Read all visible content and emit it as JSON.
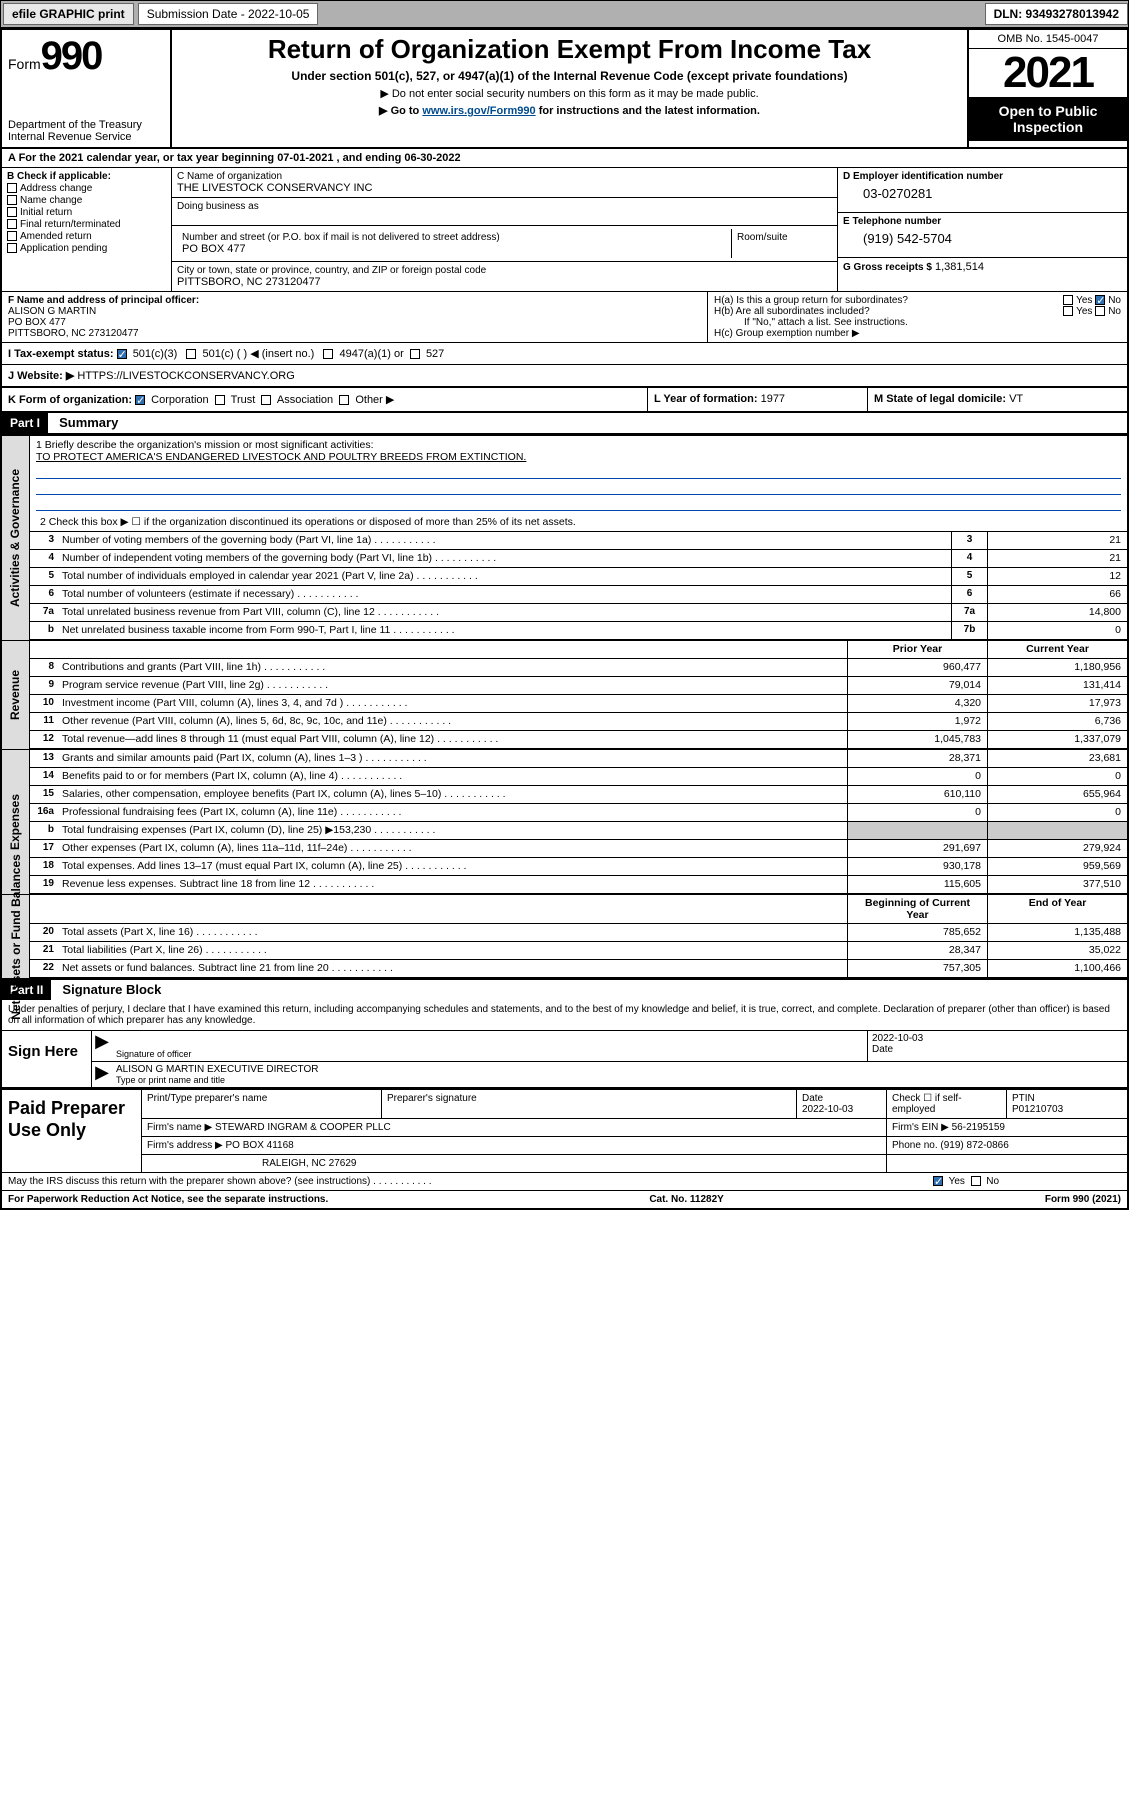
{
  "topbar": {
    "efile": "efile GRAPHIC print",
    "submission_label": "Submission Date - 2022-10-05",
    "dln": "DLN: 93493278013942"
  },
  "header": {
    "form_label": "Form",
    "form_num": "990",
    "dept": "Department of the Treasury",
    "irs": "Internal Revenue Service",
    "title": "Return of Organization Exempt From Income Tax",
    "sub1": "Under section 501(c), 527, or 4947(a)(1) of the Internal Revenue Code (except private foundations)",
    "sub2": "▶ Do not enter social security numbers on this form as it may be made public.",
    "sub3_pre": "▶ Go to ",
    "sub3_link": "www.irs.gov/Form990",
    "sub3_post": " for instructions and the latest information.",
    "omb": "OMB No. 1545-0047",
    "year": "2021",
    "open": "Open to Public Inspection"
  },
  "lineA": "A For the 2021 calendar year, or tax year beginning 07-01-2021    , and ending 06-30-2022",
  "colB": {
    "title": "B Check if applicable:",
    "opts": [
      "Address change",
      "Name change",
      "Initial return",
      "Final return/terminated",
      "Amended return",
      "Application pending"
    ]
  },
  "colC": {
    "name_lbl": "C Name of organization",
    "name": "THE LIVESTOCK CONSERVANCY INC",
    "dba_lbl": "Doing business as",
    "addr_lbl": "Number and street (or P.O. box if mail is not delivered to street address)",
    "room_lbl": "Room/suite",
    "addr": "PO BOX 477",
    "city_lbl": "City or town, state or province, country, and ZIP or foreign postal code",
    "city": "PITTSBORO, NC  273120477"
  },
  "colD": {
    "ein_lbl": "D Employer identification number",
    "ein": "03-0270281",
    "tel_lbl": "E Telephone number",
    "tel": "(919) 542-5704",
    "gross_lbl": "G Gross receipts $",
    "gross": "1,381,514"
  },
  "rowF": {
    "lbl": "F Name and address of principal officer:",
    "name": "ALISON G MARTIN",
    "addr1": "PO BOX 477",
    "addr2": "PITTSBORO, NC  273120477"
  },
  "rowH": {
    "a": "H(a)  Is this a group return for subordinates?",
    "b": "H(b)  Are all subordinates included?",
    "note": "If \"No,\" attach a list. See instructions.",
    "c": "H(c)  Group exemption number ▶",
    "yes": "Yes",
    "no": "No"
  },
  "rowI": {
    "lbl": "I    Tax-exempt status:",
    "o1": "501(c)(3)",
    "o2": "501(c) (  ) ◀ (insert no.)",
    "o3": "4947(a)(1) or",
    "o4": "527"
  },
  "rowJ": {
    "lbl": "J   Website: ▶",
    "val": "HTTPS://LIVESTOCKCONSERVANCY.ORG"
  },
  "rowK": {
    "k": "K Form of organization:",
    "opts": [
      "Corporation",
      "Trust",
      "Association",
      "Other ▶"
    ],
    "l_lbl": "L Year of formation:",
    "l_val": "1977",
    "m_lbl": "M State of legal domicile:",
    "m_val": "VT"
  },
  "part1": {
    "hdr": "Part I",
    "title": "Summary",
    "mission_lbl": "1   Briefly describe the organization's mission or most significant activities:",
    "mission": "TO PROTECT AMERICA'S ENDANGERED LIVESTOCK AND POULTRY BREEDS FROM EXTINCTION.",
    "line2": "2   Check this box ▶ ☐  if the organization discontinued its operations or disposed of more than 25% of its net assets."
  },
  "sections": [
    {
      "label": "Activities & Governance",
      "rows": [
        {
          "n": "3",
          "t": "Number of voting members of the governing body (Part VI, line 1a)",
          "box": "3",
          "v2": "21"
        },
        {
          "n": "4",
          "t": "Number of independent voting members of the governing body (Part VI, line 1b)",
          "box": "4",
          "v2": "21"
        },
        {
          "n": "5",
          "t": "Total number of individuals employed in calendar year 2021 (Part V, line 2a)",
          "box": "5",
          "v2": "12"
        },
        {
          "n": "6",
          "t": "Total number of volunteers (estimate if necessary)",
          "box": "6",
          "v2": "66"
        },
        {
          "n": "7a",
          "t": "Total unrelated business revenue from Part VIII, column (C), line 12",
          "box": "7a",
          "v2": "14,800"
        },
        {
          "n": "b",
          "t": "Net unrelated business taxable income from Form 990-T, Part I, line 11",
          "box": "7b",
          "v2": "0"
        }
      ]
    }
  ],
  "col_hdr": {
    "prior": "Prior Year",
    "current": "Current Year"
  },
  "revenue": {
    "label": "Revenue",
    "rows": [
      {
        "n": "8",
        "t": "Contributions and grants (Part VIII, line 1h)",
        "v1": "960,477",
        "v2": "1,180,956"
      },
      {
        "n": "9",
        "t": "Program service revenue (Part VIII, line 2g)",
        "v1": "79,014",
        "v2": "131,414"
      },
      {
        "n": "10",
        "t": "Investment income (Part VIII, column (A), lines 3, 4, and 7d )",
        "v1": "4,320",
        "v2": "17,973"
      },
      {
        "n": "11",
        "t": "Other revenue (Part VIII, column (A), lines 5, 6d, 8c, 9c, 10c, and 11e)",
        "v1": "1,972",
        "v2": "6,736"
      },
      {
        "n": "12",
        "t": "Total revenue—add lines 8 through 11 (must equal Part VIII, column (A), line 12)",
        "v1": "1,045,783",
        "v2": "1,337,079"
      }
    ]
  },
  "expenses": {
    "label": "Expenses",
    "rows": [
      {
        "n": "13",
        "t": "Grants and similar amounts paid (Part IX, column (A), lines 1–3 )",
        "v1": "28,371",
        "v2": "23,681"
      },
      {
        "n": "14",
        "t": "Benefits paid to or for members (Part IX, column (A), line 4)",
        "v1": "0",
        "v2": "0"
      },
      {
        "n": "15",
        "t": "Salaries, other compensation, employee benefits (Part IX, column (A), lines 5–10)",
        "v1": "610,110",
        "v2": "655,964"
      },
      {
        "n": "16a",
        "t": "Professional fundraising fees (Part IX, column (A), line 11e)",
        "v1": "0",
        "v2": "0"
      },
      {
        "n": "b",
        "t": "Total fundraising expenses (Part IX, column (D), line 25) ▶153,230",
        "shade": true
      },
      {
        "n": "17",
        "t": "Other expenses (Part IX, column (A), lines 11a–11d, 11f–24e)",
        "v1": "291,697",
        "v2": "279,924"
      },
      {
        "n": "18",
        "t": "Total expenses. Add lines 13–17 (must equal Part IX, column (A), line 25)",
        "v1": "930,178",
        "v2": "959,569"
      },
      {
        "n": "19",
        "t": "Revenue less expenses. Subtract line 18 from line 12",
        "v1": "115,605",
        "v2": "377,510"
      }
    ]
  },
  "netassets": {
    "label": "Net Assets or Fund Balances",
    "hdr": {
      "v1": "Beginning of Current Year",
      "v2": "End of Year"
    },
    "rows": [
      {
        "n": "20",
        "t": "Total assets (Part X, line 16)",
        "v1": "785,652",
        "v2": "1,135,488"
      },
      {
        "n": "21",
        "t": "Total liabilities (Part X, line 26)",
        "v1": "28,347",
        "v2": "35,022"
      },
      {
        "n": "22",
        "t": "Net assets or fund balances. Subtract line 21 from line 20",
        "v1": "757,305",
        "v2": "1,100,466"
      }
    ]
  },
  "part2": {
    "hdr": "Part II",
    "title": "Signature Block",
    "intro": "Under penalties of perjury, I declare that I have examined this return, including accompanying schedules and statements, and to the best of my knowledge and belief, it is true, correct, and complete. Declaration of preparer (other than officer) is based on all information of which preparer has any knowledge."
  },
  "sign": {
    "lbl": "Sign Here",
    "sig_lbl": "Signature of officer",
    "date": "2022-10-03",
    "date_lbl": "Date",
    "name": "ALISON G MARTIN  EXECUTIVE DIRECTOR",
    "name_lbl": "Type or print name and title"
  },
  "prep": {
    "lbl": "Paid Preparer Use Only",
    "r1": {
      "c1": "Print/Type preparer's name",
      "c2": "Preparer's signature",
      "c3_lbl": "Date",
      "c3": "2022-10-03",
      "c4": "Check ☐ if self-employed",
      "c5_lbl": "PTIN",
      "c5": "P01210703"
    },
    "r2": {
      "c1_lbl": "Firm's name    ▶",
      "c1": "STEWARD INGRAM & COOPER PLLC",
      "c2_lbl": "Firm's EIN ▶",
      "c2": "56-2195159"
    },
    "r3": {
      "c1_lbl": "Firm's address ▶",
      "c1": "PO BOX 41168",
      "c2_lbl": "Phone no.",
      "c2": "(919) 872-0866"
    },
    "r3b": "RALEIGH, NC  27629"
  },
  "footer": {
    "q": "May the IRS discuss this return with the preparer shown above? (see instructions)",
    "yes": "Yes",
    "no": "No"
  },
  "bottom": {
    "l": "For Paperwork Reduction Act Notice, see the separate instructions.",
    "m": "Cat. No. 11282Y",
    "r": "Form 990 (2021)"
  },
  "colors": {
    "link": "#004b8d",
    "check": "#2f6fb0",
    "shade": "#cccccc",
    "topbar": "#b0b0b0"
  }
}
